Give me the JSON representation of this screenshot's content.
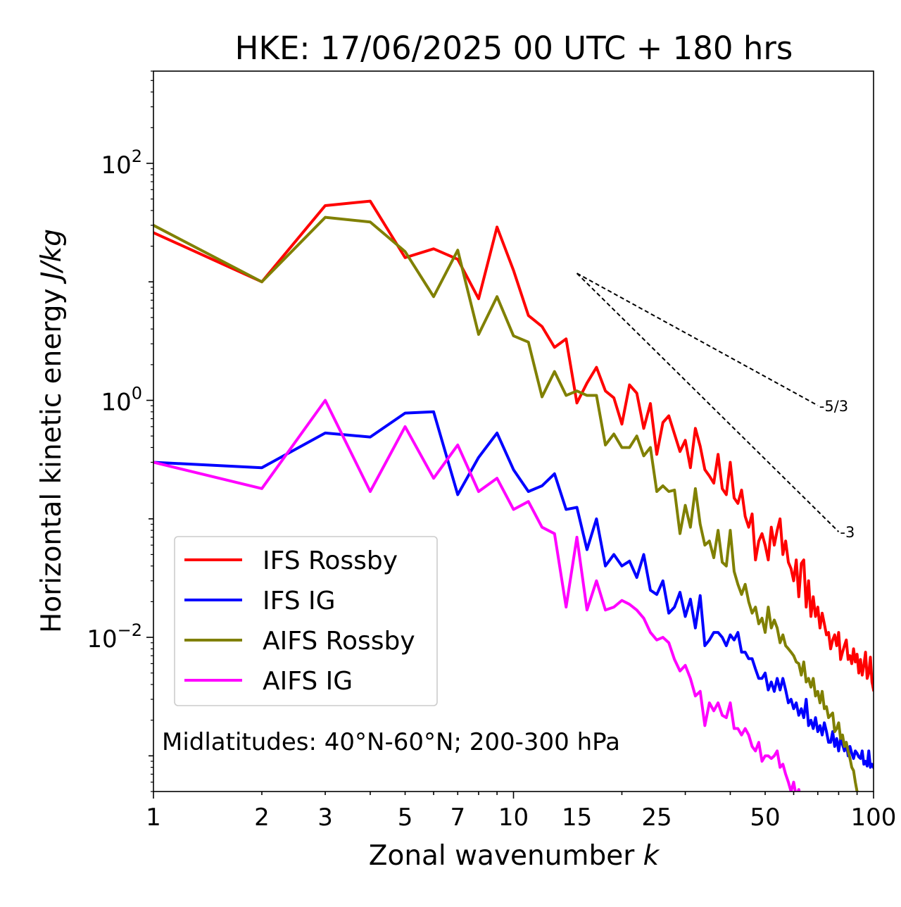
{
  "chart_data": {
    "type": "line",
    "title": "HKE: 17/06/2025 00 UTC + 180 hrs",
    "xlabel": "Zonal wavenumber",
    "xlabel_symbol": "k",
    "ylabel": "Horizontal kinetic energy",
    "ylabel_units": "J/kg",
    "xscale": "log",
    "yscale": "log",
    "xlim": [
      1,
      100
    ],
    "ylim": [
      0.0005,
      600
    ],
    "xticks": [
      1,
      2,
      3,
      5,
      7,
      10,
      15,
      25,
      50,
      100
    ],
    "xtick_labels": [
      "1",
      "2",
      "3",
      "5",
      "7",
      "10",
      "15",
      "25",
      "50",
      "100"
    ],
    "yticks": [
      {
        "value": 100,
        "base": "10",
        "exp": "2"
      },
      {
        "value": 1,
        "base": "10",
        "exp": "0"
      },
      {
        "value": 0.01,
        "base": "10",
        "exp": "−2"
      }
    ],
    "grid": false,
    "legend_position": "lower-left",
    "annotation": "Midlatitudes: 40°N-60°N; 200-300 hPa",
    "reference_slopes": [
      {
        "label": "-5/3",
        "slope": -1.6667,
        "x_start": 15,
        "y_start": 11.8,
        "x_end": 70
      },
      {
        "label": "-3",
        "slope": -3,
        "x_start": 15,
        "y_start": 11.8,
        "x_end": 80
      }
    ],
    "series": [
      {
        "name": "IFS Rossby",
        "color": "#ff0000",
        "x": [
          1,
          2,
          3,
          4,
          5,
          6,
          7,
          8,
          9,
          10,
          11,
          12,
          13,
          14,
          15,
          16,
          17,
          18,
          19,
          20,
          21,
          22,
          23,
          24,
          25,
          26,
          27,
          28,
          29,
          30,
          31,
          32,
          33,
          34,
          35,
          36,
          37,
          38,
          39,
          40,
          41,
          42,
          43,
          44,
          45,
          46,
          47,
          48,
          49,
          50,
          51,
          52,
          53,
          54,
          55,
          56,
          57,
          58,
          59,
          60,
          61,
          62,
          63,
          64,
          65,
          66,
          67,
          68,
          69,
          70,
          71,
          72,
          73,
          74,
          75,
          76,
          77,
          78,
          79,
          80,
          81,
          82,
          83,
          84,
          85,
          86,
          87,
          88,
          89,
          90,
          91,
          92,
          93,
          94,
          95,
          96,
          97,
          98,
          99,
          100
        ],
        "y": [
          26,
          10,
          44,
          48,
          16,
          19,
          15.5,
          7.2,
          29,
          12.5,
          5.2,
          4.2,
          2.8,
          3.3,
          0.95,
          1.4,
          1.9,
          1.2,
          1.05,
          0.63,
          1.35,
          1.15,
          0.58,
          0.94,
          0.35,
          0.65,
          0.74,
          0.52,
          0.37,
          0.46,
          0.27,
          0.58,
          0.41,
          0.26,
          0.23,
          0.2,
          0.35,
          0.18,
          0.16,
          0.3,
          0.15,
          0.135,
          0.175,
          0.105,
          0.085,
          0.11,
          0.045,
          0.065,
          0.075,
          0.06,
          0.045,
          0.085,
          0.06,
          0.08,
          0.1,
          0.05,
          0.065,
          0.043,
          0.038,
          0.03,
          0.045,
          0.022,
          0.042,
          0.045,
          0.018,
          0.03,
          0.015,
          0.022,
          0.015,
          0.018,
          0.012,
          0.016,
          0.013,
          0.0105,
          0.011,
          0.008,
          0.0095,
          0.0105,
          0.0085,
          0.011,
          0.0065,
          0.0075,
          0.0085,
          0.0095,
          0.0065,
          0.007,
          0.006,
          0.008,
          0.0062,
          0.0072,
          0.005,
          0.0065,
          0.0048,
          0.0058,
          0.0075,
          0.0045,
          0.005,
          0.0068,
          0.0042,
          0.0036
        ]
      },
      {
        "name": "IFS IG",
        "color": "#0000ff",
        "x": [
          1,
          2,
          3,
          4,
          5,
          6,
          7,
          8,
          9,
          10,
          11,
          12,
          13,
          14,
          15,
          16,
          17,
          18,
          19,
          20,
          21,
          22,
          23,
          24,
          25,
          26,
          27,
          28,
          29,
          30,
          31,
          32,
          33,
          34,
          35,
          36,
          37,
          38,
          39,
          40,
          41,
          42,
          43,
          44,
          45,
          46,
          47,
          48,
          49,
          50,
          51,
          52,
          53,
          54,
          55,
          56,
          57,
          58,
          59,
          60,
          61,
          62,
          63,
          64,
          65,
          66,
          67,
          68,
          69,
          70,
          71,
          72,
          73,
          74,
          75,
          76,
          77,
          78,
          79,
          80,
          81,
          82,
          83,
          84,
          85,
          86,
          87,
          88,
          89,
          90,
          91,
          92,
          93,
          94,
          95,
          96,
          97,
          98,
          99,
          100
        ],
        "y": [
          0.3,
          0.27,
          0.53,
          0.49,
          0.78,
          0.8,
          0.16,
          0.33,
          0.53,
          0.26,
          0.17,
          0.19,
          0.24,
          0.12,
          0.125,
          0.055,
          0.1,
          0.04,
          0.05,
          0.04,
          0.044,
          0.032,
          0.05,
          0.025,
          0.023,
          0.03,
          0.016,
          0.018,
          0.024,
          0.015,
          0.021,
          0.012,
          0.0225,
          0.0085,
          0.0095,
          0.011,
          0.011,
          0.01,
          0.0085,
          0.0105,
          0.0095,
          0.011,
          0.0075,
          0.0075,
          0.0066,
          0.0066,
          0.0054,
          0.0045,
          0.0045,
          0.005,
          0.0036,
          0.0042,
          0.0035,
          0.0045,
          0.0036,
          0.0045,
          0.0036,
          0.0028,
          0.003,
          0.0025,
          0.0028,
          0.0022,
          0.0025,
          0.0021,
          0.003,
          0.0018,
          0.002,
          0.0017,
          0.0021,
          0.0016,
          0.0018,
          0.0015,
          0.0019,
          0.0016,
          0.0013,
          0.0013,
          0.0016,
          0.0012,
          0.0014,
          0.0011,
          0.0014,
          0.00125,
          0.0011,
          0.0013,
          0.001,
          0.0012,
          0.00105,
          0.00095,
          0.0011,
          0.00105,
          0.00098,
          0.00095,
          0.0011,
          0.00085,
          0.0009,
          0.00082,
          0.0011,
          0.0008,
          0.00085,
          0.0008
        ]
      },
      {
        "name": "AIFS Rossby",
        "color": "#808000",
        "x": [
          1,
          2,
          3,
          4,
          5,
          6,
          7,
          8,
          9,
          10,
          11,
          12,
          13,
          14,
          15,
          16,
          17,
          18,
          19,
          20,
          21,
          22,
          23,
          24,
          25,
          26,
          27,
          28,
          29,
          30,
          31,
          32,
          33,
          34,
          35,
          36,
          37,
          38,
          39,
          40,
          41,
          42,
          43,
          44,
          45,
          46,
          47,
          48,
          49,
          50,
          51,
          52,
          53,
          54,
          55,
          56,
          57,
          58,
          59,
          60,
          61,
          62,
          63,
          64,
          65,
          66,
          67,
          68,
          69,
          70,
          71,
          72,
          73,
          74,
          75,
          76,
          77,
          78,
          79,
          80,
          81,
          82,
          83,
          84,
          85,
          86,
          87,
          88,
          89,
          90
        ],
        "y": [
          30,
          10,
          35,
          32,
          18,
          7.5,
          18.5,
          3.6,
          7.5,
          3.5,
          3.1,
          1.07,
          1.75,
          1.1,
          1.2,
          1.1,
          1.1,
          0.42,
          0.52,
          0.4,
          0.4,
          0.5,
          0.34,
          0.4,
          0.17,
          0.19,
          0.17,
          0.175,
          0.075,
          0.13,
          0.085,
          0.18,
          0.09,
          0.06,
          0.065,
          0.047,
          0.08,
          0.043,
          0.04,
          0.08,
          0.036,
          0.028,
          0.023,
          0.028,
          0.02,
          0.016,
          0.018,
          0.013,
          0.0145,
          0.011,
          0.018,
          0.012,
          0.014,
          0.012,
          0.009,
          0.0105,
          0.0085,
          0.008,
          0.0075,
          0.007,
          0.0062,
          0.006,
          0.0048,
          0.0062,
          0.0042,
          0.0045,
          0.0038,
          0.0045,
          0.0032,
          0.0035,
          0.0028,
          0.0035,
          0.0025,
          0.0026,
          0.0021,
          0.0022,
          0.0023,
          0.0016,
          0.0017,
          0.0019,
          0.0014,
          0.0015,
          0.0012,
          0.0013,
          0.0011,
          0.00095,
          0.0008,
          0.00075,
          0.0006,
          0.0005
        ]
      },
      {
        "name": "AIFS IG",
        "color": "#ff00ff",
        "x": [
          1,
          2,
          3,
          4,
          5,
          6,
          7,
          8,
          9,
          10,
          11,
          12,
          13,
          14,
          15,
          16,
          17,
          18,
          19,
          20,
          21,
          22,
          23,
          24,
          25,
          26,
          27,
          28,
          29,
          30,
          31,
          32,
          33,
          34,
          35,
          36,
          37,
          38,
          39,
          40,
          41,
          42,
          43,
          44,
          45,
          46,
          47,
          48,
          49,
          50,
          51,
          52,
          53,
          54,
          55,
          56,
          57,
          58,
          59,
          60,
          61,
          62,
          63,
          64,
          65,
          66,
          67,
          68
        ],
        "y": [
          0.3,
          0.18,
          1.0,
          0.17,
          0.6,
          0.22,
          0.42,
          0.17,
          0.22,
          0.12,
          0.14,
          0.085,
          0.075,
          0.018,
          0.07,
          0.017,
          0.03,
          0.017,
          0.018,
          0.0205,
          0.019,
          0.017,
          0.0145,
          0.011,
          0.0095,
          0.01,
          0.009,
          0.0065,
          0.0052,
          0.0058,
          0.0045,
          0.0032,
          0.0035,
          0.0018,
          0.0028,
          0.0024,
          0.0028,
          0.0022,
          0.0021,
          0.0028,
          0.0017,
          0.0017,
          0.0015,
          0.0017,
          0.0015,
          0.0012,
          0.0011,
          0.0013,
          0.0009,
          0.001,
          0.001,
          0.00095,
          0.001,
          0.0011,
          0.0008,
          0.00085,
          0.0007,
          0.0006,
          0.0005,
          0.0006,
          0.00045,
          0.00052,
          0.00042,
          0.00048,
          0.0004,
          0.00045,
          0.00038,
          0.00042
        ]
      }
    ]
  }
}
